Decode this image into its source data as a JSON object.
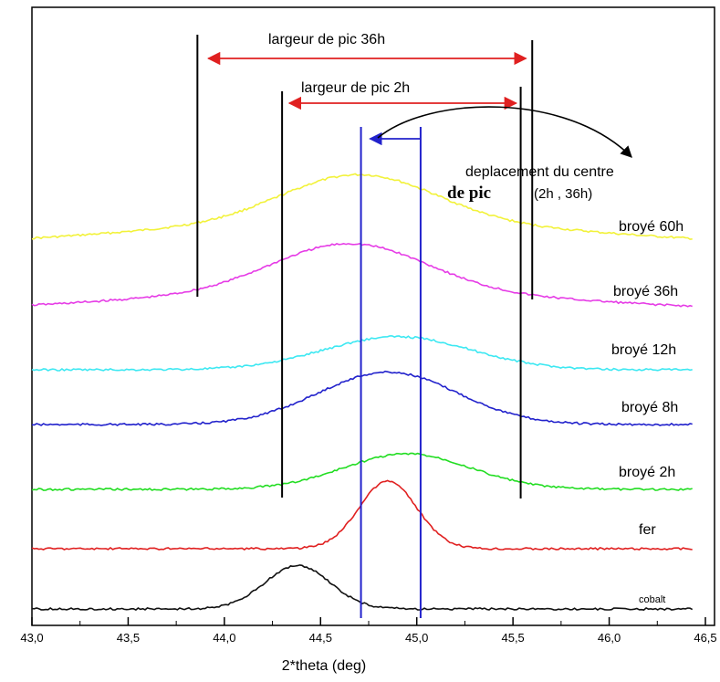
{
  "chart_data": {
    "type": "line",
    "xlabel": "2*theta (deg)",
    "ylabel": "",
    "xlim": [
      43.0,
      46.5
    ],
    "x_ticks": [
      "43,0",
      "43,5",
      "44,0",
      "44,5",
      "45,0",
      "45,5",
      "46,0",
      "46,5"
    ],
    "x_tick_values": [
      43.0,
      43.5,
      44.0,
      44.5,
      45.0,
      45.5,
      46.0,
      46.5
    ],
    "grid": false,
    "series": [
      {
        "name": "broyé 60h",
        "color": "#f2f23a",
        "baseline": 0.0,
        "peak_x": 44.7,
        "peak_height": 0.45,
        "left_level": 0.0,
        "right_level": 0.0,
        "wings": [
          0.08,
          0.08
        ],
        "sigma": 0.42
      },
      {
        "name": "broyé 36h",
        "color": "#e63ce6",
        "baseline": 0.0,
        "peak_x": 44.65,
        "peak_height": 0.4,
        "left_level": 0.0,
        "right_level": 0.0,
        "wings": [
          0.06,
          0.06
        ],
        "sigma": 0.42
      },
      {
        "name": "broyé 12h",
        "color": "#3de8f2",
        "baseline": 0.0,
        "peak_x": 44.9,
        "peak_height": 0.33,
        "left_level": 0.0,
        "right_level": 0.0,
        "wings": [
          0.0,
          0.0
        ],
        "sigma": 0.38
      },
      {
        "name": "broyé 8h",
        "color": "#2222cc",
        "baseline": 0.0,
        "peak_x": 44.85,
        "peak_height": 0.41,
        "left_level": 0.0,
        "right_level": 0.0,
        "wings": [
          0.0,
          0.0
        ],
        "sigma": 0.36
      },
      {
        "name": "broyé 2h",
        "color": "#22dd22",
        "baseline": 0.0,
        "peak_x": 44.95,
        "peak_height": 0.3,
        "left_level": 0.0,
        "right_level": 0.0,
        "wings": [
          0.0,
          0.0
        ],
        "sigma": 0.33
      },
      {
        "name": "fer",
        "color": "#e02020",
        "baseline": 0.0,
        "peak_x": 44.85,
        "peak_height": 0.5,
        "left_level": 0.0,
        "right_level": 0.0,
        "wings": [
          0.0,
          0.0
        ],
        "sigma": 0.15
      },
      {
        "name": "cobalt",
        "color": "#111111",
        "baseline": 0.0,
        "peak_x": 44.38,
        "peak_height": 0.38,
        "left_level": 0.0,
        "right_level": 0.0,
        "wings": [
          0.0,
          0.0
        ],
        "sigma": 0.17
      }
    ],
    "annotations": {
      "width_36h_label": "largeur de pic 36h",
      "width_36h_range": [
        43.86,
        45.6
      ],
      "width_2h_label": "largeur de pic 2h",
      "width_2h_range": [
        44.3,
        45.54
      ],
      "shift_label_line1": "deplacement du centre",
      "shift_label_line2": "de pic",
      "shift_label_line2b": "(2h , 36h)",
      "shift_lines_x": [
        44.71,
        45.02
      ],
      "black_verticals": [
        43.86,
        44.3,
        45.54,
        45.6
      ]
    }
  }
}
